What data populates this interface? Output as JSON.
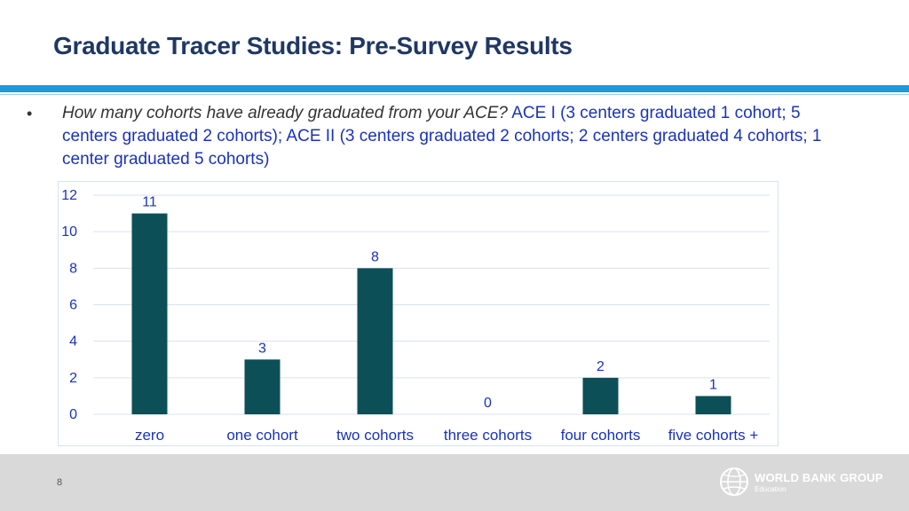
{
  "slide": {
    "title": "Graduate Tracer Studies: Pre-Survey Results",
    "bullet_marker": "•",
    "question": "How many cohorts have already graduated from your ACE?",
    "answer": " ACE I (3 centers graduated 1 cohort; 5 centers graduated 2 cohorts); ACE II (3 centers graduated 2 cohorts; 2 centers graduated 4 cohorts; 1 center graduated 5 cohorts)",
    "page_number": "8"
  },
  "logo": {
    "name": "WORLD BANK GROUP",
    "sub": "Education",
    "icon": "globe-icon"
  },
  "colors": {
    "title": "#1f3864",
    "accent_bar": "#1f9ad6",
    "answer_text": "#1a33b8",
    "bar": "#0d4f57",
    "footer": "#d9d9d9"
  },
  "chart_data": {
    "type": "bar",
    "categories": [
      "zero",
      "one cohort",
      "two cohorts",
      "three cohorts",
      "four cohorts",
      "five cohorts +"
    ],
    "values": [
      11,
      3,
      8,
      0,
      2,
      1
    ],
    "data_labels": [
      "11",
      "3",
      "8",
      "0",
      "2",
      "1"
    ],
    "yticks": [
      "0",
      "2",
      "4",
      "6",
      "8",
      "10",
      "12"
    ],
    "ylim": [
      0,
      12
    ],
    "grid": true,
    "legend": "none"
  }
}
